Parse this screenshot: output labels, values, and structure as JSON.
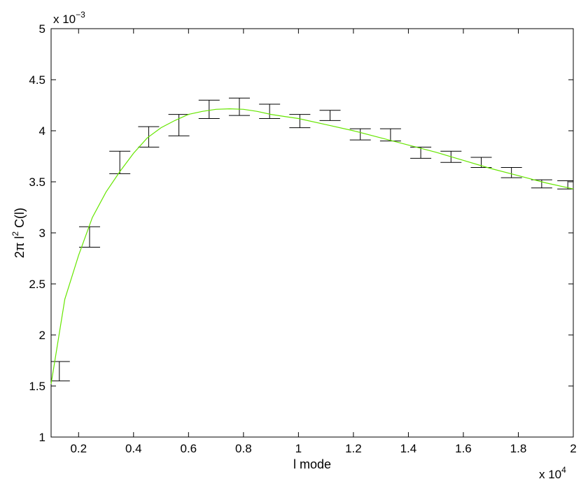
{
  "chart_data": {
    "type": "line",
    "xlabel": "l mode",
    "ylabel_parts": {
      "base": "2π l",
      "sup": "2",
      "tail": " C(l)"
    },
    "x_exponent": {
      "base": "x 10",
      "power": "4"
    },
    "y_exponent": {
      "base": "x 10",
      "power": "−3"
    },
    "xlim": [
      0.1,
      2.0
    ],
    "ylim": [
      1.0,
      5.0
    ],
    "x_ticks": [
      0.2,
      0.4,
      0.6,
      0.8,
      1.0,
      1.2,
      1.4,
      1.6,
      1.8,
      2.0
    ],
    "x_tick_labels": [
      "0.2",
      "0.4",
      "0.6",
      "0.8",
      "1",
      "1.2",
      "1.4",
      "1.6",
      "1.8",
      "2"
    ],
    "y_ticks": [
      1.0,
      1.5,
      2.0,
      2.5,
      3.0,
      3.5,
      4.0,
      4.5,
      5.0
    ],
    "y_tick_labels": [
      "1",
      "1.5",
      "2",
      "2.5",
      "3",
      "3.5",
      "4",
      "4.5",
      "5"
    ],
    "grid": false,
    "series": [
      {
        "type": "errorbar",
        "color": "#000000",
        "points": [
          {
            "x": 0.13,
            "low": 1.55,
            "high": 1.74
          },
          {
            "x": 0.24,
            "low": 2.86,
            "high": 3.06
          },
          {
            "x": 0.35,
            "low": 3.58,
            "high": 3.8
          },
          {
            "x": 0.455,
            "low": 3.84,
            "high": 4.04
          },
          {
            "x": 0.565,
            "low": 3.95,
            "high": 4.16
          },
          {
            "x": 0.675,
            "low": 4.12,
            "high": 4.3
          },
          {
            "x": 0.785,
            "low": 4.15,
            "high": 4.32
          },
          {
            "x": 0.895,
            "low": 4.12,
            "high": 4.26
          },
          {
            "x": 1.005,
            "low": 4.03,
            "high": 4.16
          },
          {
            "x": 1.115,
            "low": 4.1,
            "high": 4.2
          },
          {
            "x": 1.225,
            "low": 3.91,
            "high": 4.02
          },
          {
            "x": 1.335,
            "low": 3.9,
            "high": 4.02
          },
          {
            "x": 1.445,
            "low": 3.73,
            "high": 3.84
          },
          {
            "x": 1.555,
            "low": 3.69,
            "high": 3.8
          },
          {
            "x": 1.665,
            "low": 3.64,
            "high": 3.74
          },
          {
            "x": 1.775,
            "low": 3.54,
            "high": 3.64
          },
          {
            "x": 1.885,
            "low": 3.44,
            "high": 3.52
          },
          {
            "x": 1.98,
            "low": 3.43,
            "high": 3.51
          }
        ]
      },
      {
        "type": "line",
        "color": "#66e600",
        "x": [
          0.1,
          0.15,
          0.2,
          0.25,
          0.3,
          0.35,
          0.4,
          0.45,
          0.5,
          0.55,
          0.6,
          0.65,
          0.7,
          0.75,
          0.8,
          0.85,
          0.9,
          0.95,
          1.0,
          1.1,
          1.2,
          1.3,
          1.4,
          1.5,
          1.6,
          1.7,
          1.8,
          1.9,
          2.0
        ],
        "y": [
          1.52,
          2.35,
          2.78,
          3.15,
          3.4,
          3.6,
          3.78,
          3.93,
          4.03,
          4.1,
          4.16,
          4.19,
          4.21,
          4.215,
          4.21,
          4.19,
          4.16,
          4.14,
          4.12,
          4.06,
          4.0,
          3.93,
          3.86,
          3.79,
          3.71,
          3.63,
          3.56,
          3.49,
          3.43
        ]
      }
    ]
  }
}
